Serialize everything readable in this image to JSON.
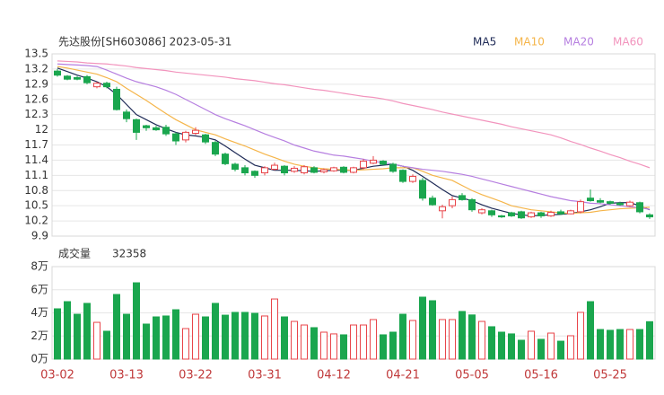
{
  "chart_data": [
    {
      "type": "candlestick",
      "title": "先达股份[SH603086] 2023-05-31",
      "up_color": "#e8454a",
      "down_color": "#1aa64e",
      "open": [
        13.16,
        13.06,
        13.03,
        13.05,
        12.85,
        12.92,
        12.8,
        12.35,
        12.2,
        12.08,
        12.04,
        12.05,
        11.92,
        11.8,
        11.93,
        11.9,
        11.75,
        11.52,
        11.32,
        11.25,
        11.18,
        11.15,
        11.22,
        11.28,
        11.18,
        11.15,
        11.25,
        11.17,
        11.19,
        11.26,
        11.16,
        11.25,
        11.34,
        11.38,
        11.32,
        11.2,
        10.98,
        11.0,
        10.65,
        10.4,
        10.5,
        10.7,
        10.62,
        10.36,
        10.4,
        10.3,
        10.36,
        10.38,
        10.28,
        10.36,
        10.3,
        10.38,
        10.34,
        10.38,
        10.65,
        10.6,
        10.58,
        10.55,
        10.5,
        10.56,
        10.32
      ],
      "high": [
        13.2,
        13.08,
        13.06,
        13.08,
        12.95,
        12.95,
        12.85,
        12.4,
        12.22,
        12.1,
        12.08,
        12.1,
        11.95,
        11.98,
        12.05,
        11.92,
        11.78,
        11.55,
        11.35,
        11.3,
        11.2,
        11.28,
        11.35,
        11.3,
        11.28,
        11.3,
        11.28,
        11.24,
        11.27,
        11.28,
        11.27,
        11.42,
        11.48,
        11.4,
        11.35,
        11.22,
        11.12,
        11.05,
        10.7,
        10.52,
        10.68,
        10.75,
        10.65,
        10.45,
        10.42,
        10.32,
        10.38,
        10.4,
        10.38,
        10.38,
        10.4,
        10.42,
        10.42,
        10.62,
        10.82,
        10.65,
        10.6,
        10.58,
        10.6,
        10.58,
        10.35
      ],
      "low": [
        13.05,
        12.98,
        12.98,
        12.9,
        12.82,
        12.82,
        12.38,
        12.15,
        11.8,
        11.98,
        11.98,
        11.88,
        11.7,
        11.75,
        11.9,
        11.72,
        11.48,
        11.3,
        11.18,
        11.1,
        11.05,
        11.1,
        11.2,
        11.1,
        11.15,
        11.12,
        11.14,
        11.14,
        11.17,
        11.14,
        11.14,
        11.22,
        11.32,
        11.3,
        11.15,
        10.95,
        10.95,
        10.6,
        10.5,
        10.25,
        10.45,
        10.6,
        10.38,
        10.33,
        10.28,
        10.26,
        10.28,
        10.24,
        10.26,
        10.26,
        10.28,
        10.32,
        10.33,
        10.35,
        10.58,
        10.55,
        10.52,
        10.5,
        10.48,
        10.35,
        10.24
      ],
      "close": [
        13.08,
        13.0,
        13.0,
        12.93,
        12.92,
        12.85,
        12.4,
        12.22,
        11.95,
        12.04,
        12.0,
        11.92,
        11.78,
        11.95,
        11.99,
        11.76,
        11.52,
        11.33,
        11.22,
        11.15,
        11.1,
        11.25,
        11.3,
        11.15,
        11.24,
        11.27,
        11.16,
        11.21,
        11.25,
        11.16,
        11.25,
        11.38,
        11.4,
        11.32,
        11.18,
        10.98,
        11.08,
        10.65,
        10.52,
        10.48,
        10.62,
        10.62,
        10.42,
        10.42,
        10.32,
        10.28,
        10.3,
        10.26,
        10.36,
        10.3,
        10.37,
        10.34,
        10.4,
        10.58,
        10.6,
        10.57,
        10.55,
        10.52,
        10.57,
        10.38,
        10.28
      ],
      "series": [
        {
          "name": "MA5",
          "color": "#1f2b57",
          "values": [
            13.22,
            13.15,
            13.08,
            13.02,
            12.95,
            12.85,
            12.7,
            12.5,
            12.3,
            12.2,
            12.1,
            12.02,
            11.95,
            11.9,
            11.88,
            11.85,
            11.8,
            11.68,
            11.55,
            11.42,
            11.3,
            11.25,
            11.2,
            11.2,
            11.2,
            11.19,
            11.18,
            11.19,
            11.2,
            11.2,
            11.2,
            11.24,
            11.28,
            11.3,
            11.32,
            11.28,
            11.2,
            11.08,
            10.95,
            10.82,
            10.7,
            10.65,
            10.6,
            10.52,
            10.45,
            10.4,
            10.35,
            10.32,
            10.3,
            10.31,
            10.32,
            10.33,
            10.35,
            10.38,
            10.42,
            10.48,
            10.55,
            10.56,
            10.56,
            10.5,
            10.42
          ]
        },
        {
          "name": "MA10",
          "color": "#f5b54a",
          "values": [
            13.25,
            13.22,
            13.18,
            13.14,
            13.1,
            13.03,
            12.95,
            12.82,
            12.7,
            12.58,
            12.45,
            12.32,
            12.2,
            12.1,
            12.0,
            11.95,
            11.9,
            11.82,
            11.75,
            11.68,
            11.6,
            11.52,
            11.45,
            11.38,
            11.32,
            11.28,
            11.25,
            11.23,
            11.22,
            11.21,
            11.2,
            11.21,
            11.22,
            11.23,
            11.25,
            11.25,
            11.25,
            11.18,
            11.1,
            11.05,
            11.0,
            10.9,
            10.8,
            10.72,
            10.65,
            10.58,
            10.5,
            10.46,
            10.42,
            10.4,
            10.38,
            10.36,
            10.35,
            10.36,
            10.37,
            10.4,
            10.42,
            10.44,
            10.45,
            10.46,
            10.47
          ]
        },
        {
          "name": "MA20",
          "color": "#b67fe0",
          "values": [
            13.3,
            13.29,
            13.28,
            13.27,
            13.25,
            13.18,
            13.1,
            13.02,
            12.95,
            12.9,
            12.85,
            12.78,
            12.7,
            12.6,
            12.5,
            12.4,
            12.3,
            12.22,
            12.15,
            12.08,
            12.0,
            11.92,
            11.85,
            11.78,
            11.7,
            11.64,
            11.58,
            11.54,
            11.5,
            11.48,
            11.45,
            11.42,
            11.38,
            11.35,
            11.32,
            11.28,
            11.25,
            11.22,
            11.2,
            11.18,
            11.15,
            11.12,
            11.08,
            11.03,
            10.98,
            10.93,
            10.88,
            10.83,
            10.78,
            10.73,
            10.68,
            10.64,
            10.6,
            10.58,
            10.55,
            10.54,
            10.52,
            10.5,
            10.48,
            10.46,
            10.43
          ]
        },
        {
          "name": "MA60",
          "color": "#f294bd",
          "values": [
            13.36,
            13.35,
            13.34,
            13.32,
            13.31,
            13.3,
            13.28,
            13.26,
            13.23,
            13.21,
            13.19,
            13.17,
            13.14,
            13.12,
            13.1,
            13.08,
            13.06,
            13.04,
            13.01,
            12.99,
            12.97,
            12.94,
            12.91,
            12.89,
            12.86,
            12.83,
            12.8,
            12.78,
            12.75,
            12.72,
            12.69,
            12.66,
            12.64,
            12.61,
            12.57,
            12.52,
            12.48,
            12.44,
            12.4,
            12.35,
            12.31,
            12.27,
            12.23,
            12.19,
            12.15,
            12.11,
            12.06,
            12.02,
            11.98,
            11.94,
            11.9,
            11.84,
            11.77,
            11.71,
            11.64,
            11.58,
            11.51,
            11.45,
            11.38,
            11.32,
            11.25
          ]
        }
      ],
      "ylim": [
        9.9,
        13.5
      ],
      "yticks": [
        9.9,
        10.2,
        10.5,
        10.8,
        11.1,
        11.4,
        11.7,
        {
          "value": 12,
          "label": "12"
        },
        12.3,
        12.6,
        12.9,
        13.2,
        13.5
      ],
      "grid": true
    },
    {
      "type": "bar",
      "title": "成交量",
      "latest": 32358,
      "categories": [
        "03-02",
        null,
        null,
        null,
        null,
        null,
        null,
        "03-13",
        null,
        null,
        null,
        null,
        null,
        null,
        "03-22",
        null,
        null,
        null,
        null,
        null,
        null,
        "03-31",
        null,
        null,
        null,
        null,
        null,
        null,
        "04-12",
        null,
        null,
        null,
        null,
        null,
        null,
        "04-21",
        null,
        null,
        null,
        null,
        null,
        null,
        "05-05",
        null,
        null,
        null,
        null,
        null,
        null,
        "05-16",
        null,
        null,
        null,
        null,
        null,
        null,
        "05-25",
        null,
        null,
        null,
        null
      ],
      "values": [
        43500,
        49700,
        38800,
        48200,
        31800,
        24100,
        55900,
        38800,
        66000,
        30300,
        36500,
        37300,
        42700,
        26400,
        38800,
        36500,
        48200,
        38000,
        40400,
        40400,
        39600,
        37300,
        52000,
        36500,
        32600,
        29500,
        27200,
        23300,
        21800,
        21000,
        29500,
        29500,
        34200,
        21000,
        23300,
        38800,
        33400,
        53600,
        50500,
        34200,
        34200,
        41200,
        38200,
        32600,
        28000,
        23300,
        21800,
        16300,
        24100,
        17100,
        22500,
        15500,
        20200,
        40400,
        49700,
        25600,
        24900,
        25600,
        25600,
        25600,
        32358
      ],
      "ylim": [
        0,
        80000
      ],
      "yticks": [
        {
          "value": 0,
          "label": "0万"
        },
        {
          "value": 20000,
          "label": "2万"
        },
        {
          "value": 40000,
          "label": "4万"
        },
        {
          "value": 60000,
          "label": "6万"
        },
        {
          "value": 80000,
          "label": "8万"
        }
      ],
      "grid": true
    }
  ]
}
